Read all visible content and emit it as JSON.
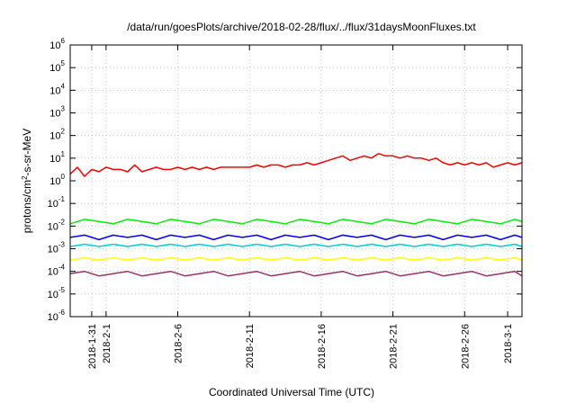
{
  "chart_data": {
    "type": "line",
    "title": "/data/run/goesPlots/archive/2018-02-28/flux/../flux/31daysMoonFluxes.txt",
    "xlabel": "Coordinated Universal Time (UTC)",
    "ylabel_prefix": "protons/cm",
    "ylabel_sup": "2",
    "ylabel_suffix": "-s-sr-MeV",
    "yscale": "log",
    "ylim_exp": [
      -6,
      6
    ],
    "y_ticks": [
      {
        "base": "10",
        "exp": "-6",
        "v": -6
      },
      {
        "base": "10",
        "exp": "-5",
        "v": -5
      },
      {
        "base": "10",
        "exp": "-4",
        "v": -4
      },
      {
        "base": "10",
        "exp": "-3",
        "v": -3
      },
      {
        "base": "10",
        "exp": "-2",
        "v": -2
      },
      {
        "base": "10",
        "exp": "-1",
        "v": -1
      },
      {
        "base": "10",
        "exp": "0",
        "v": 0
      },
      {
        "base": "10",
        "exp": "1",
        "v": 1
      },
      {
        "base": "10",
        "exp": "2",
        "v": 2
      },
      {
        "base": "10",
        "exp": "3",
        "v": 3
      },
      {
        "base": "10",
        "exp": "4",
        "v": 4
      },
      {
        "base": "10",
        "exp": "5",
        "v": 5
      },
      {
        "base": "10",
        "exp": "6",
        "v": 6
      }
    ],
    "x_range_days": [
      -2.5,
      29
    ],
    "x_ticks": [
      {
        "label": "2018-1-31",
        "day": -1
      },
      {
        "label": "2018-2-1",
        "day": 0
      },
      {
        "label": "2018-2-6",
        "day": 5
      },
      {
        "label": "2018-2-11",
        "day": 10
      },
      {
        "label": "2018-2-16",
        "day": 15
      },
      {
        "label": "2018-2-21",
        "day": 20
      },
      {
        "label": "2018-2-26",
        "day": 25
      },
      {
        "label": "2018-3-1",
        "day": 28
      }
    ],
    "grid": true,
    "series": [
      {
        "color": "#ff0000",
        "points": [
          [
            -2.5,
            0.3
          ],
          [
            -2.0,
            0.6
          ],
          [
            -1.5,
            0.2
          ],
          [
            -1.0,
            0.5
          ],
          [
            -0.5,
            0.4
          ],
          [
            0.0,
            0.6
          ],
          [
            0.5,
            0.5
          ],
          [
            1.0,
            0.5
          ],
          [
            1.5,
            0.4
          ],
          [
            2.0,
            0.7
          ],
          [
            2.5,
            0.4
          ],
          [
            3.0,
            0.5
          ],
          [
            3.5,
            0.6
          ],
          [
            4.0,
            0.5
          ],
          [
            4.5,
            0.5
          ],
          [
            5.0,
            0.6
          ],
          [
            5.5,
            0.5
          ],
          [
            6.0,
            0.6
          ],
          [
            6.5,
            0.5
          ],
          [
            7.0,
            0.6
          ],
          [
            7.5,
            0.5
          ],
          [
            8.0,
            0.6
          ],
          [
            8.5,
            0.6
          ],
          [
            9.0,
            0.6
          ],
          [
            9.5,
            0.6
          ],
          [
            10.0,
            0.6
          ],
          [
            10.5,
            0.7
          ],
          [
            11.0,
            0.6
          ],
          [
            11.5,
            0.7
          ],
          [
            12.0,
            0.7
          ],
          [
            12.5,
            0.6
          ],
          [
            13.0,
            0.7
          ],
          [
            13.5,
            0.7
          ],
          [
            14.0,
            0.8
          ],
          [
            14.5,
            0.7
          ],
          [
            15.0,
            0.8
          ],
          [
            15.5,
            0.9
          ],
          [
            16.0,
            1.0
          ],
          [
            16.5,
            1.1
          ],
          [
            17.0,
            0.9
          ],
          [
            17.5,
            1.0
          ],
          [
            18.0,
            1.1
          ],
          [
            18.5,
            1.0
          ],
          [
            19.0,
            1.2
          ],
          [
            19.5,
            1.1
          ],
          [
            20.0,
            1.1
          ],
          [
            20.5,
            1.0
          ],
          [
            21.0,
            1.1
          ],
          [
            21.5,
            1.0
          ],
          [
            22.0,
            1.0
          ],
          [
            22.5,
            0.9
          ],
          [
            23.0,
            1.0
          ],
          [
            23.5,
            0.8
          ],
          [
            24.0,
            0.7
          ],
          [
            24.5,
            0.8
          ],
          [
            25.0,
            0.7
          ],
          [
            25.5,
            0.8
          ],
          [
            26.0,
            0.7
          ],
          [
            26.5,
            0.8
          ],
          [
            27.0,
            0.6
          ],
          [
            27.5,
            0.7
          ],
          [
            28.0,
            0.8
          ],
          [
            28.5,
            0.7
          ],
          [
            29.0,
            0.8
          ]
        ]
      },
      {
        "color": "#00ee00",
        "points": [
          [
            -2.5,
            -1.9
          ],
          [
            -1.5,
            -1.7
          ],
          [
            -0.5,
            -1.8
          ],
          [
            0.5,
            -1.9
          ],
          [
            1.5,
            -1.7
          ],
          [
            2.5,
            -1.8
          ],
          [
            3.5,
            -1.9
          ],
          [
            4.5,
            -1.7
          ],
          [
            5.5,
            -1.8
          ],
          [
            6.5,
            -1.9
          ],
          [
            7.5,
            -1.7
          ],
          [
            8.5,
            -1.8
          ],
          [
            9.5,
            -1.9
          ],
          [
            10.5,
            -1.7
          ],
          [
            11.5,
            -1.8
          ],
          [
            12.5,
            -1.9
          ],
          [
            13.5,
            -1.7
          ],
          [
            14.5,
            -1.8
          ],
          [
            15.5,
            -1.9
          ],
          [
            16.5,
            -1.7
          ],
          [
            17.5,
            -1.8
          ],
          [
            18.5,
            -1.9
          ],
          [
            19.5,
            -1.7
          ],
          [
            20.5,
            -1.8
          ],
          [
            21.5,
            -1.9
          ],
          [
            22.5,
            -1.7
          ],
          [
            23.5,
            -1.8
          ],
          [
            24.5,
            -1.9
          ],
          [
            25.5,
            -1.7
          ],
          [
            26.5,
            -1.8
          ],
          [
            27.5,
            -1.9
          ],
          [
            28.5,
            -1.7
          ],
          [
            29.0,
            -1.8
          ]
        ]
      },
      {
        "color": "#00d0d0",
        "points": [
          [
            -2.5,
            -2.9
          ],
          [
            -1.5,
            -2.8
          ],
          [
            -0.5,
            -2.9
          ],
          [
            0.5,
            -2.8
          ],
          [
            1.5,
            -2.9
          ],
          [
            2.5,
            -2.8
          ],
          [
            3.5,
            -2.9
          ],
          [
            4.5,
            -2.8
          ],
          [
            5.5,
            -2.9
          ],
          [
            6.5,
            -2.8
          ],
          [
            7.5,
            -2.9
          ],
          [
            8.5,
            -2.8
          ],
          [
            9.5,
            -2.9
          ],
          [
            10.5,
            -2.8
          ],
          [
            11.5,
            -2.9
          ],
          [
            12.5,
            -2.8
          ],
          [
            13.5,
            -2.9
          ],
          [
            14.5,
            -2.8
          ],
          [
            15.5,
            -2.9
          ],
          [
            16.5,
            -2.8
          ],
          [
            17.5,
            -2.9
          ],
          [
            18.5,
            -2.8
          ],
          [
            19.5,
            -2.9
          ],
          [
            20.5,
            -2.8
          ],
          [
            21.5,
            -2.9
          ],
          [
            22.5,
            -2.8
          ],
          [
            23.5,
            -2.9
          ],
          [
            24.5,
            -2.8
          ],
          [
            25.5,
            -2.9
          ],
          [
            26.5,
            -2.8
          ],
          [
            27.5,
            -2.9
          ],
          [
            28.5,
            -2.8
          ],
          [
            29.0,
            -2.9
          ]
        ]
      },
      {
        "color": "#0000ff",
        "points": [
          [
            -2.5,
            -2.5
          ],
          [
            -1.5,
            -2.4
          ],
          [
            -0.5,
            -2.6
          ],
          [
            0.5,
            -2.4
          ],
          [
            1.5,
            -2.5
          ],
          [
            2.5,
            -2.4
          ],
          [
            3.5,
            -2.6
          ],
          [
            4.5,
            -2.4
          ],
          [
            5.5,
            -2.5
          ],
          [
            6.5,
            -2.4
          ],
          [
            7.5,
            -2.6
          ],
          [
            8.5,
            -2.4
          ],
          [
            9.5,
            -2.5
          ],
          [
            10.5,
            -2.4
          ],
          [
            11.5,
            -2.6
          ],
          [
            12.5,
            -2.4
          ],
          [
            13.5,
            -2.5
          ],
          [
            14.5,
            -2.4
          ],
          [
            15.5,
            -2.6
          ],
          [
            16.5,
            -2.4
          ],
          [
            17.5,
            -2.5
          ],
          [
            18.5,
            -2.4
          ],
          [
            19.5,
            -2.6
          ],
          [
            20.5,
            -2.4
          ],
          [
            21.5,
            -2.5
          ],
          [
            22.5,
            -2.4
          ],
          [
            23.5,
            -2.6
          ],
          [
            24.5,
            -2.4
          ],
          [
            25.5,
            -2.5
          ],
          [
            26.5,
            -2.4
          ],
          [
            27.5,
            -2.6
          ],
          [
            28.5,
            -2.4
          ],
          [
            29.0,
            -2.5
          ]
        ]
      },
      {
        "color": "#ffff00",
        "points": [
          [
            -2.5,
            -3.5
          ],
          [
            -1.5,
            -3.4
          ],
          [
            -0.5,
            -3.5
          ],
          [
            0.5,
            -3.4
          ],
          [
            1.5,
            -3.5
          ],
          [
            2.5,
            -3.4
          ],
          [
            3.5,
            -3.5
          ],
          [
            4.5,
            -3.4
          ],
          [
            5.5,
            -3.5
          ],
          [
            6.5,
            -3.4
          ],
          [
            7.5,
            -3.5
          ],
          [
            8.5,
            -3.4
          ],
          [
            9.5,
            -3.5
          ],
          [
            10.5,
            -3.4
          ],
          [
            11.5,
            -3.5
          ],
          [
            12.5,
            -3.4
          ],
          [
            13.5,
            -3.5
          ],
          [
            14.5,
            -3.4
          ],
          [
            15.5,
            -3.5
          ],
          [
            16.5,
            -3.4
          ],
          [
            17.5,
            -3.5
          ],
          [
            18.5,
            -3.4
          ],
          [
            19.5,
            -3.5
          ],
          [
            20.5,
            -3.4
          ],
          [
            21.5,
            -3.5
          ],
          [
            22.5,
            -3.4
          ],
          [
            23.5,
            -3.5
          ],
          [
            24.5,
            -3.4
          ],
          [
            25.5,
            -3.5
          ],
          [
            26.5,
            -3.4
          ],
          [
            27.5,
            -3.5
          ],
          [
            28.5,
            -3.4
          ],
          [
            29.0,
            -3.5
          ]
        ]
      },
      {
        "color": "#993366",
        "points": [
          [
            -2.5,
            -4.1
          ],
          [
            -1.5,
            -4.0
          ],
          [
            -0.5,
            -4.2
          ],
          [
            0.5,
            -4.1
          ],
          [
            1.5,
            -4.0
          ],
          [
            2.5,
            -4.2
          ],
          [
            3.5,
            -4.1
          ],
          [
            4.5,
            -4.0
          ],
          [
            5.5,
            -4.2
          ],
          [
            6.5,
            -4.1
          ],
          [
            7.5,
            -4.0
          ],
          [
            8.5,
            -4.2
          ],
          [
            9.5,
            -4.1
          ],
          [
            10.5,
            -4.0
          ],
          [
            11.5,
            -4.2
          ],
          [
            12.5,
            -4.1
          ],
          [
            13.5,
            -4.0
          ],
          [
            14.5,
            -4.2
          ],
          [
            15.5,
            -4.1
          ],
          [
            16.5,
            -4.0
          ],
          [
            17.5,
            -4.2
          ],
          [
            18.5,
            -4.1
          ],
          [
            19.5,
            -4.0
          ],
          [
            20.5,
            -4.2
          ],
          [
            21.5,
            -4.1
          ],
          [
            22.5,
            -4.0
          ],
          [
            23.5,
            -4.2
          ],
          [
            24.5,
            -4.1
          ],
          [
            25.5,
            -4.0
          ],
          [
            26.5,
            -4.2
          ],
          [
            27.5,
            -4.1
          ],
          [
            28.5,
            -4.0
          ],
          [
            29.0,
            -4.2
          ]
        ]
      }
    ]
  }
}
